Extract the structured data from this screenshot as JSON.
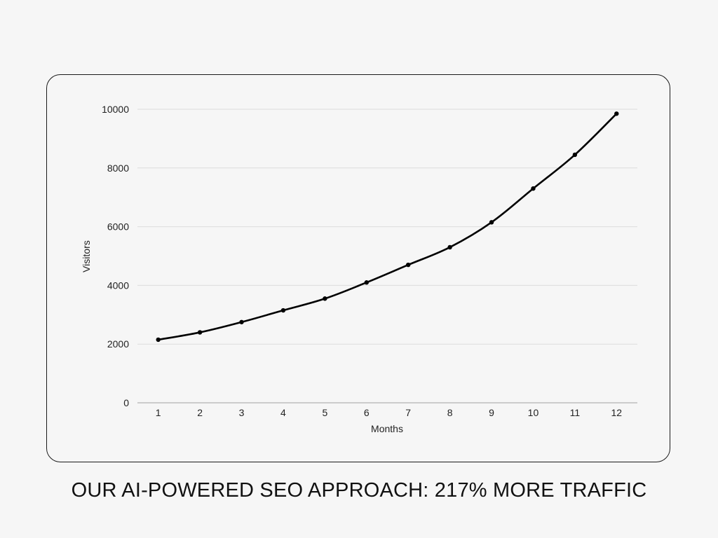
{
  "caption": "OUR AI-POWERED SEO APPROACH: 217% MORE TRAFFIC",
  "colors": {
    "background": "#f6f6f6",
    "line": "#000000",
    "grid": "#dcdcdc",
    "card_border": "#1a1a1a"
  },
  "chart_data": {
    "type": "line",
    "title": "OUR AI-POWERED SEO APPROACH: 217% MORE TRAFFIC",
    "xlabel": "Months",
    "ylabel": "Visitors",
    "categories": [
      "1",
      "2",
      "3",
      "4",
      "5",
      "6",
      "7",
      "8",
      "9",
      "10",
      "11",
      "12"
    ],
    "series": [
      {
        "name": "Visitors",
        "values": [
          2150,
          2400,
          2750,
          3150,
          3550,
          4100,
          4700,
          5300,
          6150,
          7300,
          8450,
          9850
        ]
      }
    ],
    "ylim": [
      0,
      10000
    ],
    "yticks": [
      "0",
      "2000",
      "4000",
      "6000",
      "8000",
      "10000"
    ],
    "grid": true,
    "legend": "none",
    "markers": true,
    "smooth": true
  }
}
